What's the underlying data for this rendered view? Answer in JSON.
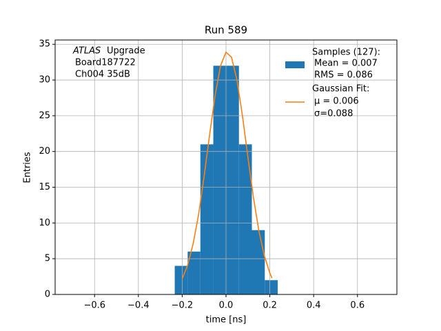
{
  "chart_data": {
    "type": "histogram",
    "title": "Run 589",
    "xlabel": "time [ns]",
    "ylabel": "Entries",
    "annotation": {
      "experiment": "ATLAS",
      "text": "Upgrade",
      "lines": [
        "Board187722",
        "Ch004 35dB"
      ]
    },
    "bins": [
      -0.234,
      -0.175,
      -0.117,
      -0.058,
      0.0,
      0.059,
      0.118,
      0.177,
      0.236
    ],
    "counts": [
      4,
      6,
      21,
      32,
      32,
      21,
      9,
      2
    ],
    "color": "#1f77b4",
    "hist_name": "Samples (127):",
    "hist_stats": [
      "Mean = 0.007",
      "RMS = 0.086"
    ],
    "fit": {
      "name": "Gaussian Fit:",
      "stats": [
        "μ = 0.006",
        "σ=0.088"
      ],
      "color": "#ff7f0e",
      "x": [
        -0.2,
        -0.175,
        -0.15,
        -0.125,
        -0.1,
        -0.075,
        -0.05,
        -0.025,
        0,
        0.025,
        0.05,
        0.075,
        0.1,
        0.125,
        0.15,
        0.175,
        0.2,
        0.21
      ],
      "values": [
        2.2,
        4.1,
        7.1,
        11.2,
        16.5,
        22.3,
        27.8,
        32.0,
        33.9,
        33.2,
        30.0,
        25.0,
        19.2,
        13.6,
        8.9,
        5.4,
        3.0,
        2.3
      ]
    },
    "xlim": [
      -0.78,
      0.78
    ],
    "ylim": [
      0,
      35.6
    ],
    "xticks": [
      {
        "value": -0.6,
        "label": "−0.6"
      },
      {
        "value": -0.4,
        "label": "−0.4"
      },
      {
        "value": -0.2,
        "label": "−0.2"
      },
      {
        "value": 0,
        "label": "0.0"
      },
      0.2,
      0.4,
      0.6
    ],
    "yticks": [
      0,
      5,
      10,
      15,
      20,
      25,
      30,
      35
    ],
    "grid": true
  }
}
